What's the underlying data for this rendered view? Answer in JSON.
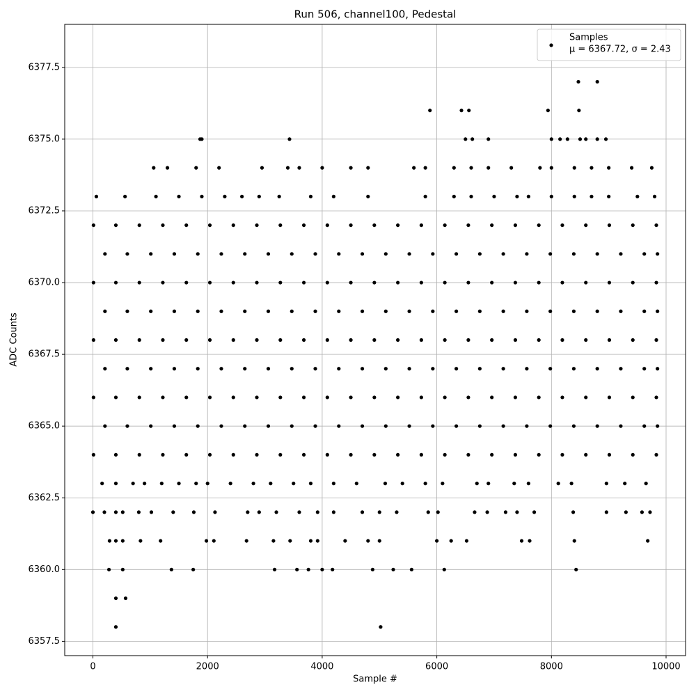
{
  "chart_data": {
    "type": "scatter",
    "title": "Run 506, channel100, Pedestal",
    "x_label": "Sample #",
    "y_label": "ADC Counts",
    "legend_position": "upper right",
    "legend_note": "μ = 6367.72, σ = 2.43",
    "grid": true,
    "xlim": [
      -492,
      10340
    ],
    "ylim": [
      6357.0,
      6379.0
    ],
    "xticks": [
      0,
      2000,
      4000,
      6000,
      8000,
      10000
    ],
    "yticks": [
      6357.5,
      {
        "value": 6360,
        "label": "6360.0"
      },
      6362.5,
      {
        "value": 6365,
        "label": "6365.0"
      },
      6367.5,
      {
        "value": 6370,
        "label": "6370.0"
      },
      6372.5,
      {
        "value": 6375,
        "label": "6375.0"
      },
      6377.5
    ],
    "series": [
      {
        "name": "Samples",
        "color": "#000000",
        "x": [
          400,
          5020,
          400,
          570,
          280,
          520,
          1370,
          1750,
          3170,
          3560,
          3760,
          4000,
          4180,
          4880,
          5240,
          5560,
          6130,
          8430,
          290,
          400,
          520,
          830,
          1180,
          1980,
          2110,
          2680,
          3150,
          3440,
          3800,
          3920,
          4400,
          4800,
          5000,
          6000,
          6250,
          6520,
          7480,
          7620,
          8400,
          9680,
          0,
          200,
          400,
          520,
          800,
          1020,
          1400,
          1760,
          2130,
          2700,
          2900,
          3200,
          3600,
          3920,
          4200,
          4700,
          5000,
          5300,
          5850,
          6020,
          6660,
          6880,
          7200,
          7400,
          7700,
          8380,
          8960,
          9300,
          9580,
          9720,
          160,
          400,
          700,
          900,
          1200,
          1500,
          1800,
          2000,
          2400,
          2800,
          3100,
          3500,
          3800,
          4200,
          4600,
          5100,
          5400,
          5800,
          6100,
          6700,
          6900,
          7350,
          7600,
          8120,
          8350,
          8960,
          9280,
          9650,
          10,
          400,
          810,
          1220,
          1630,
          2040,
          2450,
          2860,
          3270,
          3680,
          4090,
          4500,
          4910,
          5320,
          5730,
          6140,
          6550,
          6960,
          7370,
          7780,
          8190,
          8600,
          9010,
          9420,
          9830,
          210,
          600,
          1010,
          1420,
          1830,
          2240,
          2650,
          3060,
          3470,
          3880,
          4290,
          4700,
          5110,
          5520,
          5930,
          6340,
          6750,
          7160,
          7570,
          7980,
          8390,
          8800,
          9210,
          9620,
          9850,
          10,
          400,
          810,
          1220,
          1630,
          2040,
          2450,
          2860,
          3270,
          3680,
          4090,
          4500,
          4910,
          5320,
          5730,
          6140,
          6550,
          6960,
          7370,
          7780,
          8190,
          8600,
          9010,
          9420,
          9830,
          210,
          600,
          1010,
          1420,
          1830,
          2240,
          2650,
          3060,
          3470,
          3880,
          4290,
          4700,
          5110,
          5520,
          5930,
          6340,
          6750,
          7160,
          7570,
          7980,
          8390,
          8800,
          9210,
          9620,
          9850,
          10,
          400,
          810,
          1220,
          1630,
          2040,
          2450,
          2860,
          3270,
          3680,
          4090,
          4500,
          4910,
          5320,
          5730,
          6140,
          6550,
          6960,
          7370,
          7780,
          8190,
          8600,
          9010,
          9420,
          9830,
          210,
          600,
          1010,
          1420,
          1830,
          2240,
          2650,
          3060,
          3470,
          3880,
          4290,
          4700,
          5110,
          5520,
          5930,
          6340,
          6750,
          7160,
          7570,
          7980,
          8390,
          8800,
          9210,
          9620,
          9850,
          10,
          400,
          810,
          1220,
          1630,
          2040,
          2450,
          2860,
          3270,
          3680,
          4090,
          4500,
          4910,
          5320,
          5730,
          6140,
          6550,
          6960,
          7370,
          7780,
          8190,
          8600,
          9010,
          9420,
          9830,
          210,
          600,
          1010,
          1420,
          1830,
          2240,
          2650,
          3060,
          3470,
          3880,
          4290,
          4700,
          5110,
          5520,
          5930,
          6340,
          6750,
          7160,
          7570,
          7980,
          8390,
          8800,
          9210,
          9620,
          9850,
          10,
          400,
          810,
          1220,
          1630,
          2040,
          2450,
          2860,
          3270,
          3680,
          4090,
          4500,
          4910,
          5320,
          5730,
          6140,
          6550,
          6960,
          7370,
          7780,
          8190,
          8600,
          9010,
          9420,
          9830,
          60,
          560,
          1100,
          1500,
          1900,
          2300,
          2600,
          2900,
          3250,
          3800,
          4200,
          4800,
          5800,
          6300,
          6600,
          7000,
          7400,
          7600,
          8000,
          8400,
          8700,
          9000,
          9500,
          9800,
          1060,
          1300,
          1800,
          2200,
          2950,
          3400,
          3600,
          4000,
          4500,
          4800,
          5600,
          5800,
          6300,
          6600,
          6900,
          7300,
          7800,
          8000,
          8400,
          8700,
          9000,
          9400,
          9750,
          1870,
          1900,
          3430,
          6500,
          6620,
          6900,
          8000,
          8150,
          8280,
          8500,
          8600,
          8800,
          8950,
          5880,
          6430,
          6560,
          7940,
          8480,
          8470,
          8800
        ],
        "values": [
          6358,
          6358,
          6359,
          6359,
          6360,
          6360,
          6360,
          6360,
          6360,
          6360,
          6360,
          6360,
          6360,
          6360,
          6360,
          6360,
          6360,
          6360,
          6361,
          6361,
          6361,
          6361,
          6361,
          6361,
          6361,
          6361,
          6361,
          6361,
          6361,
          6361,
          6361,
          6361,
          6361,
          6361,
          6361,
          6361,
          6361,
          6361,
          6361,
          6361,
          6362,
          6362,
          6362,
          6362,
          6362,
          6362,
          6362,
          6362,
          6362,
          6362,
          6362,
          6362,
          6362,
          6362,
          6362,
          6362,
          6362,
          6362,
          6362,
          6362,
          6362,
          6362,
          6362,
          6362,
          6362,
          6362,
          6362,
          6362,
          6362,
          6362,
          6363,
          6363,
          6363,
          6363,
          6363,
          6363,
          6363,
          6363,
          6363,
          6363,
          6363,
          6363,
          6363,
          6363,
          6363,
          6363,
          6363,
          6363,
          6363,
          6363,
          6363,
          6363,
          6363,
          6363,
          6363,
          6363,
          6363,
          6363,
          6364,
          6364,
          6364,
          6364,
          6364,
          6364,
          6364,
          6364,
          6364,
          6364,
          6364,
          6364,
          6364,
          6364,
          6364,
          6364,
          6364,
          6364,
          6364,
          6364,
          6364,
          6364,
          6364,
          6364,
          6364,
          6365,
          6365,
          6365,
          6365,
          6365,
          6365,
          6365,
          6365,
          6365,
          6365,
          6365,
          6365,
          6365,
          6365,
          6365,
          6365,
          6365,
          6365,
          6365,
          6365,
          6365,
          6365,
          6365,
          6365,
          6365,
          6366,
          6366,
          6366,
          6366,
          6366,
          6366,
          6366,
          6366,
          6366,
          6366,
          6366,
          6366,
          6366,
          6366,
          6366,
          6366,
          6366,
          6366,
          6366,
          6366,
          6366,
          6366,
          6366,
          6366,
          6366,
          6367,
          6367,
          6367,
          6367,
          6367,
          6367,
          6367,
          6367,
          6367,
          6367,
          6367,
          6367,
          6367,
          6367,
          6367,
          6367,
          6367,
          6367,
          6367,
          6367,
          6367,
          6367,
          6367,
          6367,
          6367,
          6368,
          6368,
          6368,
          6368,
          6368,
          6368,
          6368,
          6368,
          6368,
          6368,
          6368,
          6368,
          6368,
          6368,
          6368,
          6368,
          6368,
          6368,
          6368,
          6368,
          6368,
          6368,
          6368,
          6368,
          6368,
          6369,
          6369,
          6369,
          6369,
          6369,
          6369,
          6369,
          6369,
          6369,
          6369,
          6369,
          6369,
          6369,
          6369,
          6369,
          6369,
          6369,
          6369,
          6369,
          6369,
          6369,
          6369,
          6369,
          6369,
          6369,
          6370,
          6370,
          6370,
          6370,
          6370,
          6370,
          6370,
          6370,
          6370,
          6370,
          6370,
          6370,
          6370,
          6370,
          6370,
          6370,
          6370,
          6370,
          6370,
          6370,
          6370,
          6370,
          6370,
          6370,
          6370,
          6371,
          6371,
          6371,
          6371,
          6371,
          6371,
          6371,
          6371,
          6371,
          6371,
          6371,
          6371,
          6371,
          6371,
          6371,
          6371,
          6371,
          6371,
          6371,
          6371,
          6371,
          6371,
          6371,
          6371,
          6371,
          6372,
          6372,
          6372,
          6372,
          6372,
          6372,
          6372,
          6372,
          6372,
          6372,
          6372,
          6372,
          6372,
          6372,
          6372,
          6372,
          6372,
          6372,
          6372,
          6372,
          6372,
          6372,
          6372,
          6372,
          6372,
          6373,
          6373,
          6373,
          6373,
          6373,
          6373,
          6373,
          6373,
          6373,
          6373,
          6373,
          6373,
          6373,
          6373,
          6373,
          6373,
          6373,
          6373,
          6373,
          6373,
          6373,
          6373,
          6373,
          6373,
          6374,
          6374,
          6374,
          6374,
          6374,
          6374,
          6374,
          6374,
          6374,
          6374,
          6374,
          6374,
          6374,
          6374,
          6374,
          6374,
          6374,
          6374,
          6374,
          6374,
          6374,
          6374,
          6374,
          6375,
          6375,
          6375,
          6375,
          6375,
          6375,
          6375,
          6375,
          6375,
          6375,
          6375,
          6375,
          6375,
          6376,
          6376,
          6376,
          6376,
          6376,
          6377,
          6377
        ]
      }
    ]
  }
}
